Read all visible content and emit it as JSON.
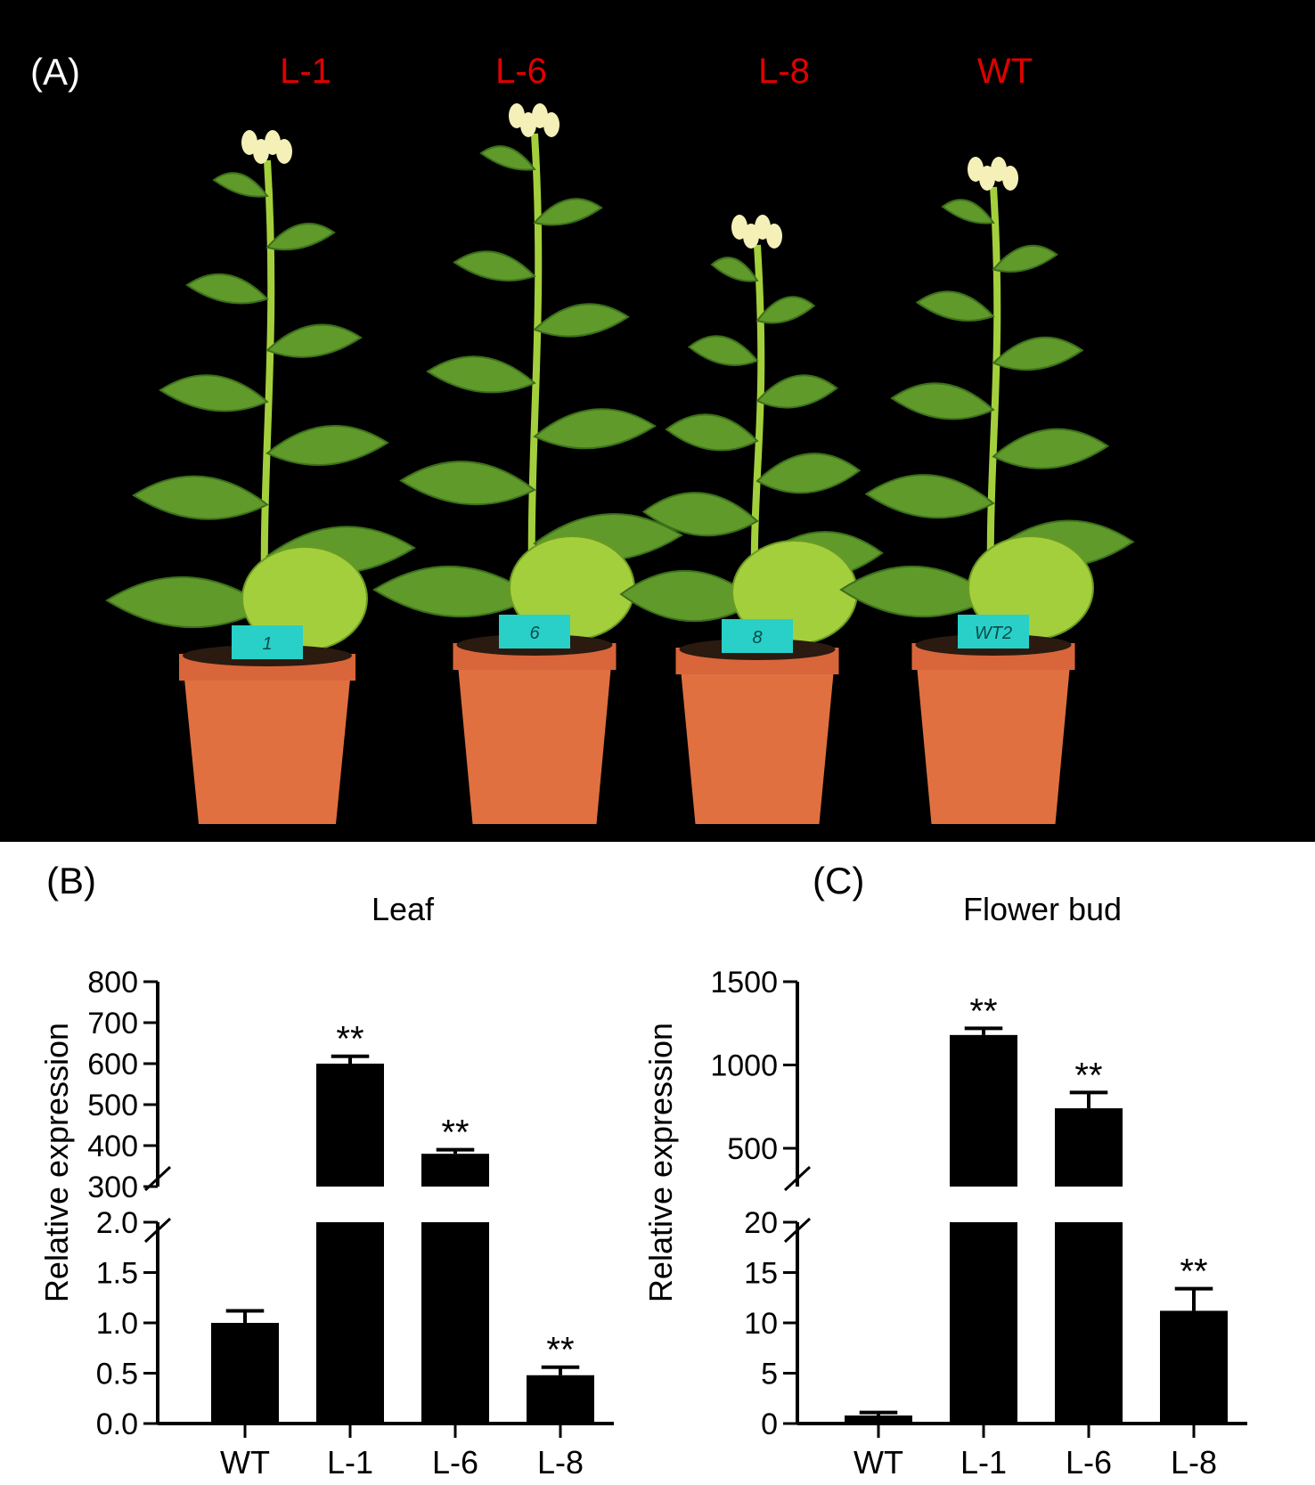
{
  "panel_a": {
    "label": "(A)",
    "line_labels": [
      "L-1",
      "L-6",
      "L-8",
      "WT"
    ],
    "label_color": "#e00000",
    "background": "#000000",
    "leaf_color": "#5f9a2a",
    "leaf_light_color": "#a4cf3c",
    "pot_color": "#e07040",
    "tag_color": "#28d0c8",
    "tag_texts": [
      "1",
      "6",
      "8",
      "WT2"
    ]
  },
  "chart_data": [
    {
      "panel_label": "(B)",
      "type": "bar",
      "title": "Leaf",
      "ylabel": "Relative expression",
      "categories": [
        "WT",
        "L-1",
        "L-6",
        "L-8"
      ],
      "values": [
        1.0,
        600,
        380,
        0.48
      ],
      "errors": [
        0.12,
        18,
        10,
        0.08
      ],
      "significance": [
        "",
        "**",
        "**",
        "**"
      ],
      "axis_break": true,
      "lower_segment": {
        "ylim": [
          0,
          2.0
        ],
        "ticks": [
          "0.0",
          "0.5",
          "1.0",
          "1.5",
          "2.0"
        ],
        "tick_values": [
          0,
          0.5,
          1.0,
          1.5,
          2.0
        ]
      },
      "upper_segment": {
        "ylim": [
          300,
          800
        ],
        "ticks": [
          "300",
          "400",
          "500",
          "600",
          "700",
          "800"
        ],
        "tick_values": [
          300,
          400,
          500,
          600,
          700,
          800
        ]
      },
      "bar_color": "#000000"
    },
    {
      "panel_label": "(C)",
      "type": "bar",
      "title": "Flower bud",
      "ylabel": "Relative expression",
      "categories": [
        "WT",
        "L-1",
        "L-6",
        "L-8"
      ],
      "values": [
        0.8,
        1180,
        740,
        11.2
      ],
      "errors": [
        0.3,
        40,
        95,
        2.2
      ],
      "significance": [
        "",
        "**",
        "**",
        "**"
      ],
      "axis_break": true,
      "lower_segment": {
        "ylim": [
          0,
          20
        ],
        "ticks": [
          "0",
          "5",
          "10",
          "15",
          "20"
        ],
        "tick_values": [
          0,
          5,
          10,
          15,
          20
        ]
      },
      "upper_segment": {
        "ylim": [
          270,
          1500
        ],
        "ticks": [
          "500",
          "1000",
          "1500"
        ],
        "tick_values": [
          500,
          1000,
          1500
        ]
      },
      "bar_color": "#000000"
    }
  ]
}
